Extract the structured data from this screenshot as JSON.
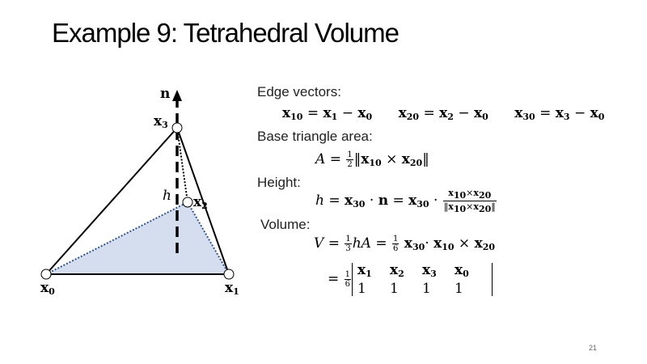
{
  "slide": {
    "title": "Example 9: Tetrahedral Volume",
    "page_number": "21"
  },
  "figure": {
    "normal_label": "n",
    "height_label": "h",
    "vertex_x0": "x",
    "vertex_x1": "x",
    "vertex_x2": "x",
    "vertex_x3": "x",
    "sub0": "0",
    "sub1": "1",
    "sub2": "2",
    "sub3": "3",
    "fill_color": "#d5deee",
    "edge_color": "#000000",
    "dotted_color": "#2f5597"
  },
  "text": {
    "edge_vectors_label": "Edge vectors:",
    "base_area_label": "Base triangle area:",
    "height_label": "Height:",
    "volume_label": "Volume:"
  },
  "equations": {
    "x": "x",
    "n": "n",
    "A": "A",
    "h": "h",
    "V": "V",
    "eq": "=",
    "minus": "−",
    "times": "×",
    "dot": "·",
    "one": "1",
    "two": "2",
    "three": "3",
    "six": "6",
    "s10": "10",
    "s20": "20",
    "s30": "30",
    "s0": "0",
    "s1": "1",
    "s2": "2",
    "s3": "3",
    "norm_open": "‖",
    "norm_close": "‖",
    "det_row2": [
      "1",
      "1",
      "1",
      "1"
    ]
  }
}
